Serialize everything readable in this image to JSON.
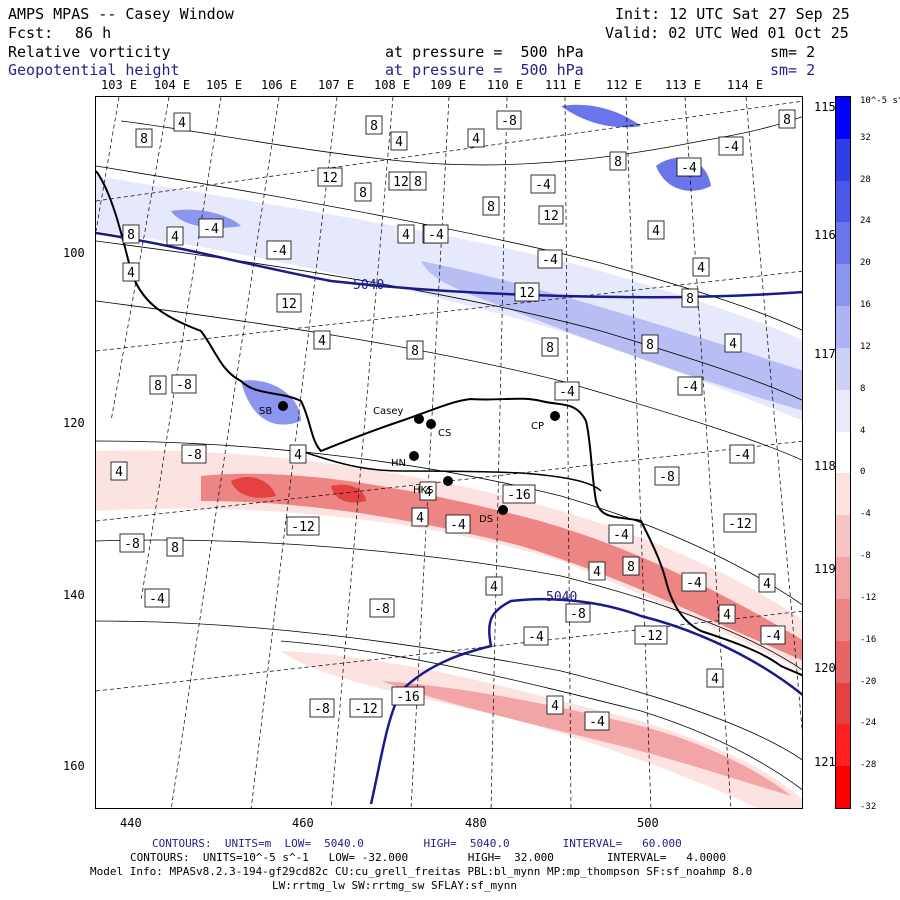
{
  "header": {
    "title": "AMPS MPAS -- Casey Window",
    "init": "Init: 12 UTC Sat 27 Sep 25",
    "fcst_label": "Fcst:",
    "fcst_value": "86 h",
    "valid": "Valid: 02 UTC Wed 01 Oct 25",
    "field1": "Relative vorticity",
    "field1_level": "at pressure =  500 hPa",
    "field1_sm": "sm= 2",
    "field2": "Geopotential height",
    "field2_level": "at pressure =  500 hPa",
    "field2_sm": "sm= 2"
  },
  "axes": {
    "top_lon": [
      "103 E",
      "104 E",
      "105 E",
      "106 E",
      "107 E",
      "108 E",
      "109 E",
      "110 E",
      "111 E",
      "112 E",
      "113 E",
      "114 E"
    ],
    "right_lon": [
      "115 E",
      "116 E",
      "117 E",
      "118 E",
      "119 E",
      "120 E",
      "121 E"
    ],
    "left_ticks": [
      "100",
      "120",
      "140",
      "160"
    ],
    "bottom_ticks": [
      "440",
      "460",
      "480",
      "500"
    ]
  },
  "stations": [
    {
      "id": "SB",
      "label": "SB"
    },
    {
      "id": "Casey",
      "label": "Casey"
    },
    {
      "id": "CS",
      "label": "CS"
    },
    {
      "id": "HN",
      "label": "HN"
    },
    {
      "id": "HKS",
      "label": "HKS"
    },
    {
      "id": "DS",
      "label": "DS"
    },
    {
      "id": "CP",
      "label": "CP"
    }
  ],
  "contour_labels": {
    "height": [
      "5040",
      "5040"
    ],
    "vorticity": [
      "8",
      "4",
      "8",
      "4",
      "-8",
      "8",
      "4",
      "12",
      "8",
      "12",
      "8",
      "4",
      "-4",
      "4",
      "-4",
      "-4",
      "-4",
      "-4",
      "12",
      "8",
      "8",
      "12",
      "-4",
      "4",
      "-4",
      "4",
      "8",
      "8",
      "4",
      "4",
      "12",
      "4",
      "8",
      "8",
      "8",
      "4",
      "8",
      "-8",
      "-4",
      "-4",
      "4",
      "-8",
      "4",
      "-8",
      "-4",
      "4",
      "-12",
      "-8",
      "8",
      "-12",
      "4",
      "-4",
      "-16",
      "-4",
      "4",
      "8",
      "-4",
      "4",
      "-4",
      "-8",
      "4",
      "-4",
      "4",
      "-4",
      "-8",
      "-12",
      "4",
      "-8",
      "-12",
      "-16",
      "4",
      "-4"
    ]
  },
  "colorbar": {
    "units": "10^-5 s^-1",
    "labels": [
      "32",
      "28",
      "24",
      "20",
      "16",
      "12",
      "8",
      "4",
      "0",
      "-4",
      "-8",
      "-12",
      "-16",
      "-20",
      "-24",
      "-28",
      "-32"
    ],
    "colors": [
      "#0000ff",
      "#2f3fe4",
      "#4a58e8",
      "#6a75ec",
      "#8c95f0",
      "#adb3f4",
      "#cdd1f8",
      "#e8eafc",
      "#ffffff",
      "#fde2e2",
      "#f8c4c4",
      "#f3a5a5",
      "#ee8585",
      "#e96464",
      "#e44242",
      "#ff2020",
      "#ff0000"
    ]
  },
  "footer": {
    "line1": "CONTOURS:  UNITS=m  LOW=  5040.0         HIGH=  5040.0        INTERVAL=   60.000",
    "line2": "CONTOURS:  UNITS=10^-5 s^-1   LOW= -32.000         HIGH=  32.000        INTERVAL=   4.0000",
    "line3": "Model Info: MPASv8.2.3-194-gf29cd82c CU:cu_grell_freitas PBL:bl_mynn MP:mp_thompson SF:sf_noahmp 8.0",
    "line4": "LW:rrtmg_lw SW:rrtmg_sw SFLAY:sf_mynn"
  }
}
